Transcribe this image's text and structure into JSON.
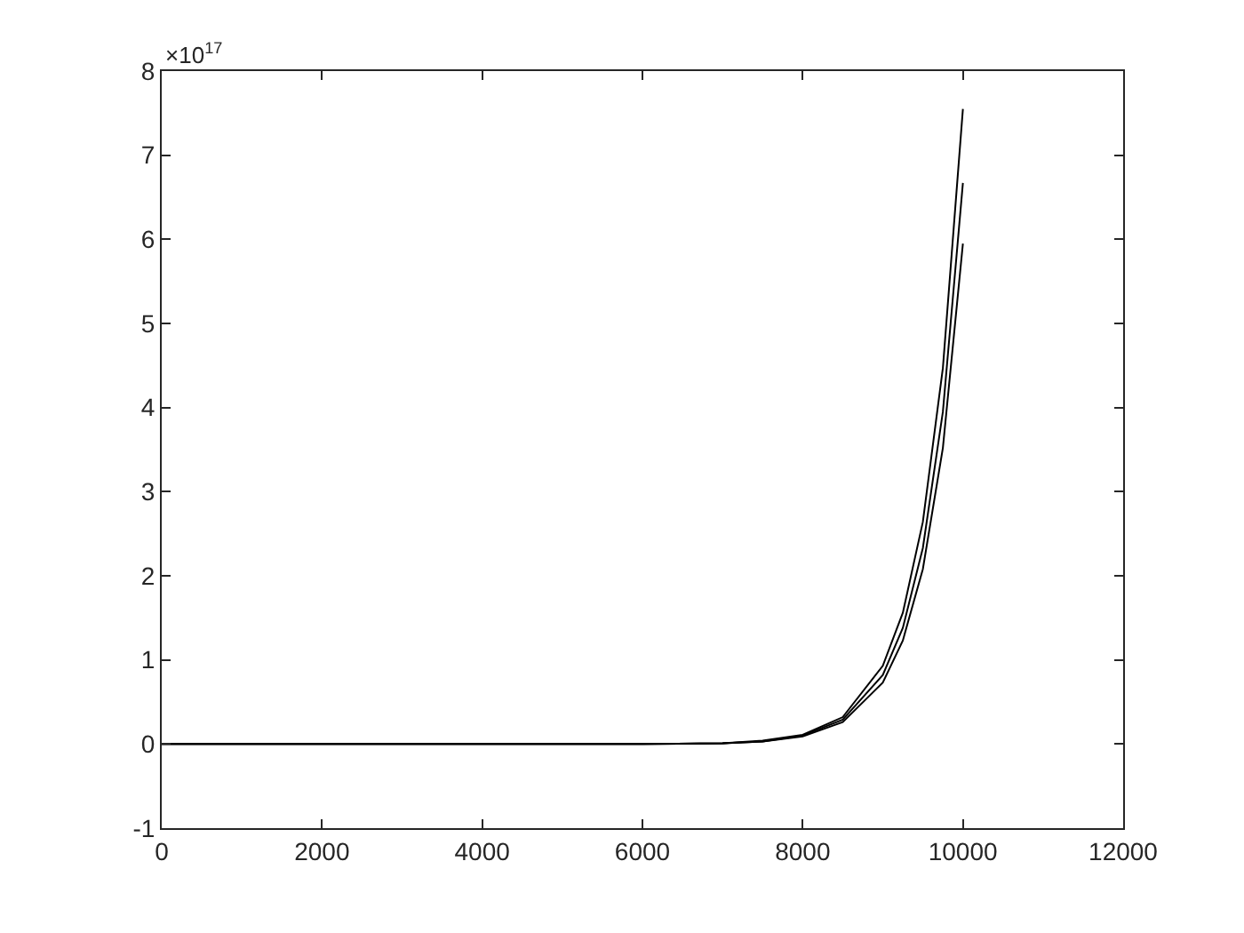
{
  "chart_data": {
    "type": "line",
    "x": [
      0,
      2000,
      4000,
      6000,
      7000,
      7500,
      8000,
      8500,
      9000,
      9250,
      9500,
      9750,
      10000
    ],
    "series": [
      {
        "color": "#000000",
        "values": [
          0,
          0,
          0,
          0,
          0.01,
          0.04,
          0.11,
          0.32,
          0.93,
          1.56,
          2.64,
          4.47,
          7.55
        ]
      },
      {
        "color": "#000000",
        "values": [
          0,
          0,
          0,
          0,
          0.01,
          0.03,
          0.1,
          0.29,
          0.82,
          1.38,
          2.33,
          3.95,
          6.67
        ]
      },
      {
        "color": "#000000",
        "values": [
          0,
          0,
          0,
          0,
          0.01,
          0.03,
          0.09,
          0.26,
          0.73,
          1.23,
          2.08,
          3.52,
          5.95
        ]
      }
    ],
    "xlim": [
      0,
      12000
    ],
    "xticks": [
      0,
      2000,
      4000,
      6000,
      8000,
      10000,
      12000
    ],
    "ylim": [
      -1,
      8
    ],
    "yticks": [
      -1,
      0,
      1,
      2,
      3,
      4,
      5,
      6,
      7,
      8
    ],
    "annotations": [
      "×10$^{17}$"
    ],
    "grid": false,
    "marker": "none",
    "line_style": "solid"
  }
}
